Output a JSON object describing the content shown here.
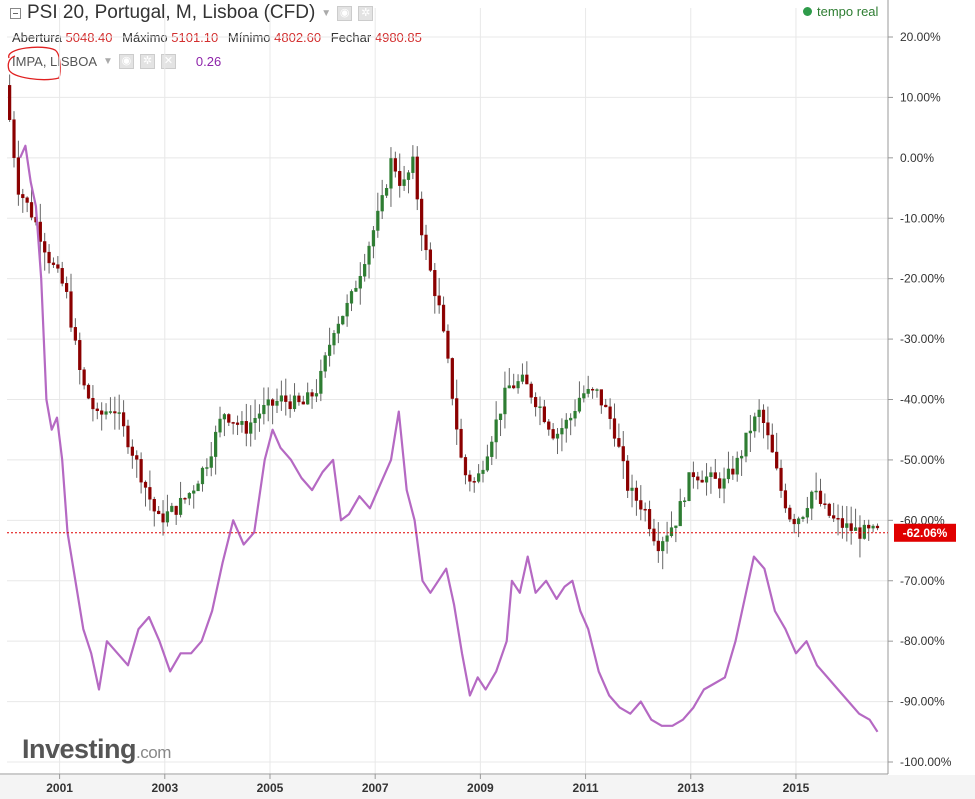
{
  "header": {
    "title": "PSI 20, Portugal, M, Lisboa (CFD)",
    "realtime_label": "tempo real",
    "ohlc": [
      {
        "label": "Abertura",
        "value": "5048.40"
      },
      {
        "label": "Máximo",
        "value": "5101.10"
      },
      {
        "label": "Mínimo",
        "value": "4802.60"
      },
      {
        "label": "Fechar",
        "value": "4980.85"
      }
    ],
    "indicator_label": "IMPA, LISBOA",
    "indicator_value": "0.26"
  },
  "logo": {
    "main": "Investing",
    "suffix": ".com"
  },
  "colors": {
    "up": "#2e7d32",
    "down": "#8b0000",
    "line": "#b569c3",
    "grid": "#e8e8e8",
    "current": "#e00000",
    "axis_text": "#333333"
  },
  "chart_data": {
    "type": "candlestick+line",
    "x_ticks": [
      2001,
      2003,
      2005,
      2007,
      2009,
      2011,
      2013,
      2015
    ],
    "x_range": [
      2000.0,
      2016.75
    ],
    "y_ticks": [
      20,
      10,
      0,
      -10,
      -20,
      -30,
      -40,
      -50,
      -60,
      -70,
      -80,
      -90,
      -100
    ],
    "y_range": [
      -100,
      20
    ],
    "y_tick_suffix": "%",
    "current_value_label": "-62.06%",
    "current_value": -62.06,
    "psi20_keypoints": [
      [
        2000.05,
        12
      ],
      [
        2000.3,
        -5
      ],
      [
        2000.6,
        -10
      ],
      [
        2000.9,
        -17
      ],
      [
        2001.2,
        -22
      ],
      [
        2001.5,
        -37
      ],
      [
        2001.8,
        -43
      ],
      [
        2002.1,
        -41
      ],
      [
        2002.4,
        -47
      ],
      [
        2002.7,
        -54
      ],
      [
        2002.95,
        -60
      ],
      [
        2003.3,
        -58
      ],
      [
        2003.6,
        -55
      ],
      [
        2003.9,
        -50
      ],
      [
        2004.2,
        -42
      ],
      [
        2004.6,
        -45
      ],
      [
        2004.9,
        -42
      ],
      [
        2005.3,
        -40
      ],
      [
        2005.7,
        -41
      ],
      [
        2006.0,
        -38
      ],
      [
        2006.3,
        -28
      ],
      [
        2006.6,
        -24
      ],
      [
        2006.9,
        -16
      ],
      [
        2007.2,
        -8
      ],
      [
        2007.4,
        0
      ],
      [
        2007.6,
        -5
      ],
      [
        2007.8,
        -1
      ],
      [
        2008.0,
        -14
      ],
      [
        2008.3,
        -25
      ],
      [
        2008.5,
        -36
      ],
      [
        2008.75,
        -52
      ],
      [
        2009.0,
        -54
      ],
      [
        2009.3,
        -46
      ],
      [
        2009.6,
        -38
      ],
      [
        2009.9,
        -37
      ],
      [
        2010.2,
        -41
      ],
      [
        2010.5,
        -46
      ],
      [
        2010.8,
        -43
      ],
      [
        2011.0,
        -39
      ],
      [
        2011.3,
        -39
      ],
      [
        2011.6,
        -44
      ],
      [
        2011.9,
        -55
      ],
      [
        2012.2,
        -58
      ],
      [
        2012.45,
        -64
      ],
      [
        2012.8,
        -60
      ],
      [
        2013.1,
        -52
      ],
      [
        2013.4,
        -53
      ],
      [
        2013.7,
        -54
      ],
      [
        2014.0,
        -50
      ],
      [
        2014.2,
        -45
      ],
      [
        2014.4,
        -42
      ],
      [
        2014.6,
        -48
      ],
      [
        2014.8,
        -55
      ],
      [
        2015.0,
        -60
      ],
      [
        2015.2,
        -59
      ],
      [
        2015.4,
        -55
      ],
      [
        2015.6,
        -58
      ],
      [
        2015.8,
        -60
      ],
      [
        2016.0,
        -61
      ],
      [
        2016.3,
        -62
      ],
      [
        2016.55,
        -62
      ]
    ],
    "impa_points": [
      [
        2000.25,
        0
      ],
      [
        2000.35,
        2
      ],
      [
        2000.45,
        -4
      ],
      [
        2000.55,
        -8
      ],
      [
        2000.65,
        -20
      ],
      [
        2000.75,
        -40
      ],
      [
        2000.85,
        -45
      ],
      [
        2000.95,
        -43
      ],
      [
        2001.05,
        -50
      ],
      [
        2001.15,
        -62
      ],
      [
        2001.3,
        -70
      ],
      [
        2001.45,
        -78
      ],
      [
        2001.6,
        -82
      ],
      [
        2001.75,
        -88
      ],
      [
        2001.9,
        -80
      ],
      [
        2002.1,
        -82
      ],
      [
        2002.3,
        -84
      ],
      [
        2002.5,
        -78
      ],
      [
        2002.7,
        -76
      ],
      [
        2002.9,
        -80
      ],
      [
        2003.1,
        -85
      ],
      [
        2003.3,
        -82
      ],
      [
        2003.5,
        -82
      ],
      [
        2003.7,
        -80
      ],
      [
        2003.9,
        -75
      ],
      [
        2004.1,
        -67
      ],
      [
        2004.3,
        -60
      ],
      [
        2004.5,
        -64
      ],
      [
        2004.7,
        -62
      ],
      [
        2004.9,
        -50
      ],
      [
        2005.05,
        -45
      ],
      [
        2005.2,
        -48
      ],
      [
        2005.4,
        -50
      ],
      [
        2005.6,
        -53
      ],
      [
        2005.8,
        -55
      ],
      [
        2006.0,
        -52
      ],
      [
        2006.2,
        -50
      ],
      [
        2006.35,
        -60
      ],
      [
        2006.5,
        -59
      ],
      [
        2006.7,
        -56
      ],
      [
        2006.9,
        -58
      ],
      [
        2007.1,
        -54
      ],
      [
        2007.3,
        -50
      ],
      [
        2007.45,
        -42
      ],
      [
        2007.6,
        -55
      ],
      [
        2007.75,
        -60
      ],
      [
        2007.9,
        -70
      ],
      [
        2008.05,
        -72
      ],
      [
        2008.2,
        -70
      ],
      [
        2008.35,
        -68
      ],
      [
        2008.5,
        -74
      ],
      [
        2008.65,
        -82
      ],
      [
        2008.8,
        -89
      ],
      [
        2008.95,
        -86
      ],
      [
        2009.1,
        -88
      ],
      [
        2009.3,
        -85
      ],
      [
        2009.5,
        -80
      ],
      [
        2009.6,
        -70
      ],
      [
        2009.75,
        -72
      ],
      [
        2009.9,
        -66
      ],
      [
        2010.05,
        -72
      ],
      [
        2010.25,
        -70
      ],
      [
        2010.45,
        -73
      ],
      [
        2010.6,
        -71
      ],
      [
        2010.75,
        -70
      ],
      [
        2010.9,
        -75
      ],
      [
        2011.05,
        -78
      ],
      [
        2011.25,
        -85
      ],
      [
        2011.45,
        -89
      ],
      [
        2011.65,
        -91
      ],
      [
        2011.85,
        -92
      ],
      [
        2012.05,
        -90
      ],
      [
        2012.25,
        -93
      ],
      [
        2012.45,
        -94
      ],
      [
        2012.65,
        -94
      ],
      [
        2012.85,
        -93
      ],
      [
        2013.05,
        -91
      ],
      [
        2013.25,
        -88
      ],
      [
        2013.45,
        -87
      ],
      [
        2013.65,
        -86
      ],
      [
        2013.85,
        -80
      ],
      [
        2014.05,
        -72
      ],
      [
        2014.2,
        -66
      ],
      [
        2014.4,
        -68
      ],
      [
        2014.6,
        -75
      ],
      [
        2014.8,
        -78
      ],
      [
        2015.0,
        -82
      ],
      [
        2015.2,
        -80
      ],
      [
        2015.4,
        -84
      ],
      [
        2015.6,
        -86
      ],
      [
        2015.8,
        -88
      ],
      [
        2016.0,
        -90
      ],
      [
        2016.2,
        -92
      ],
      [
        2016.4,
        -93
      ],
      [
        2016.55,
        -95
      ]
    ]
  }
}
